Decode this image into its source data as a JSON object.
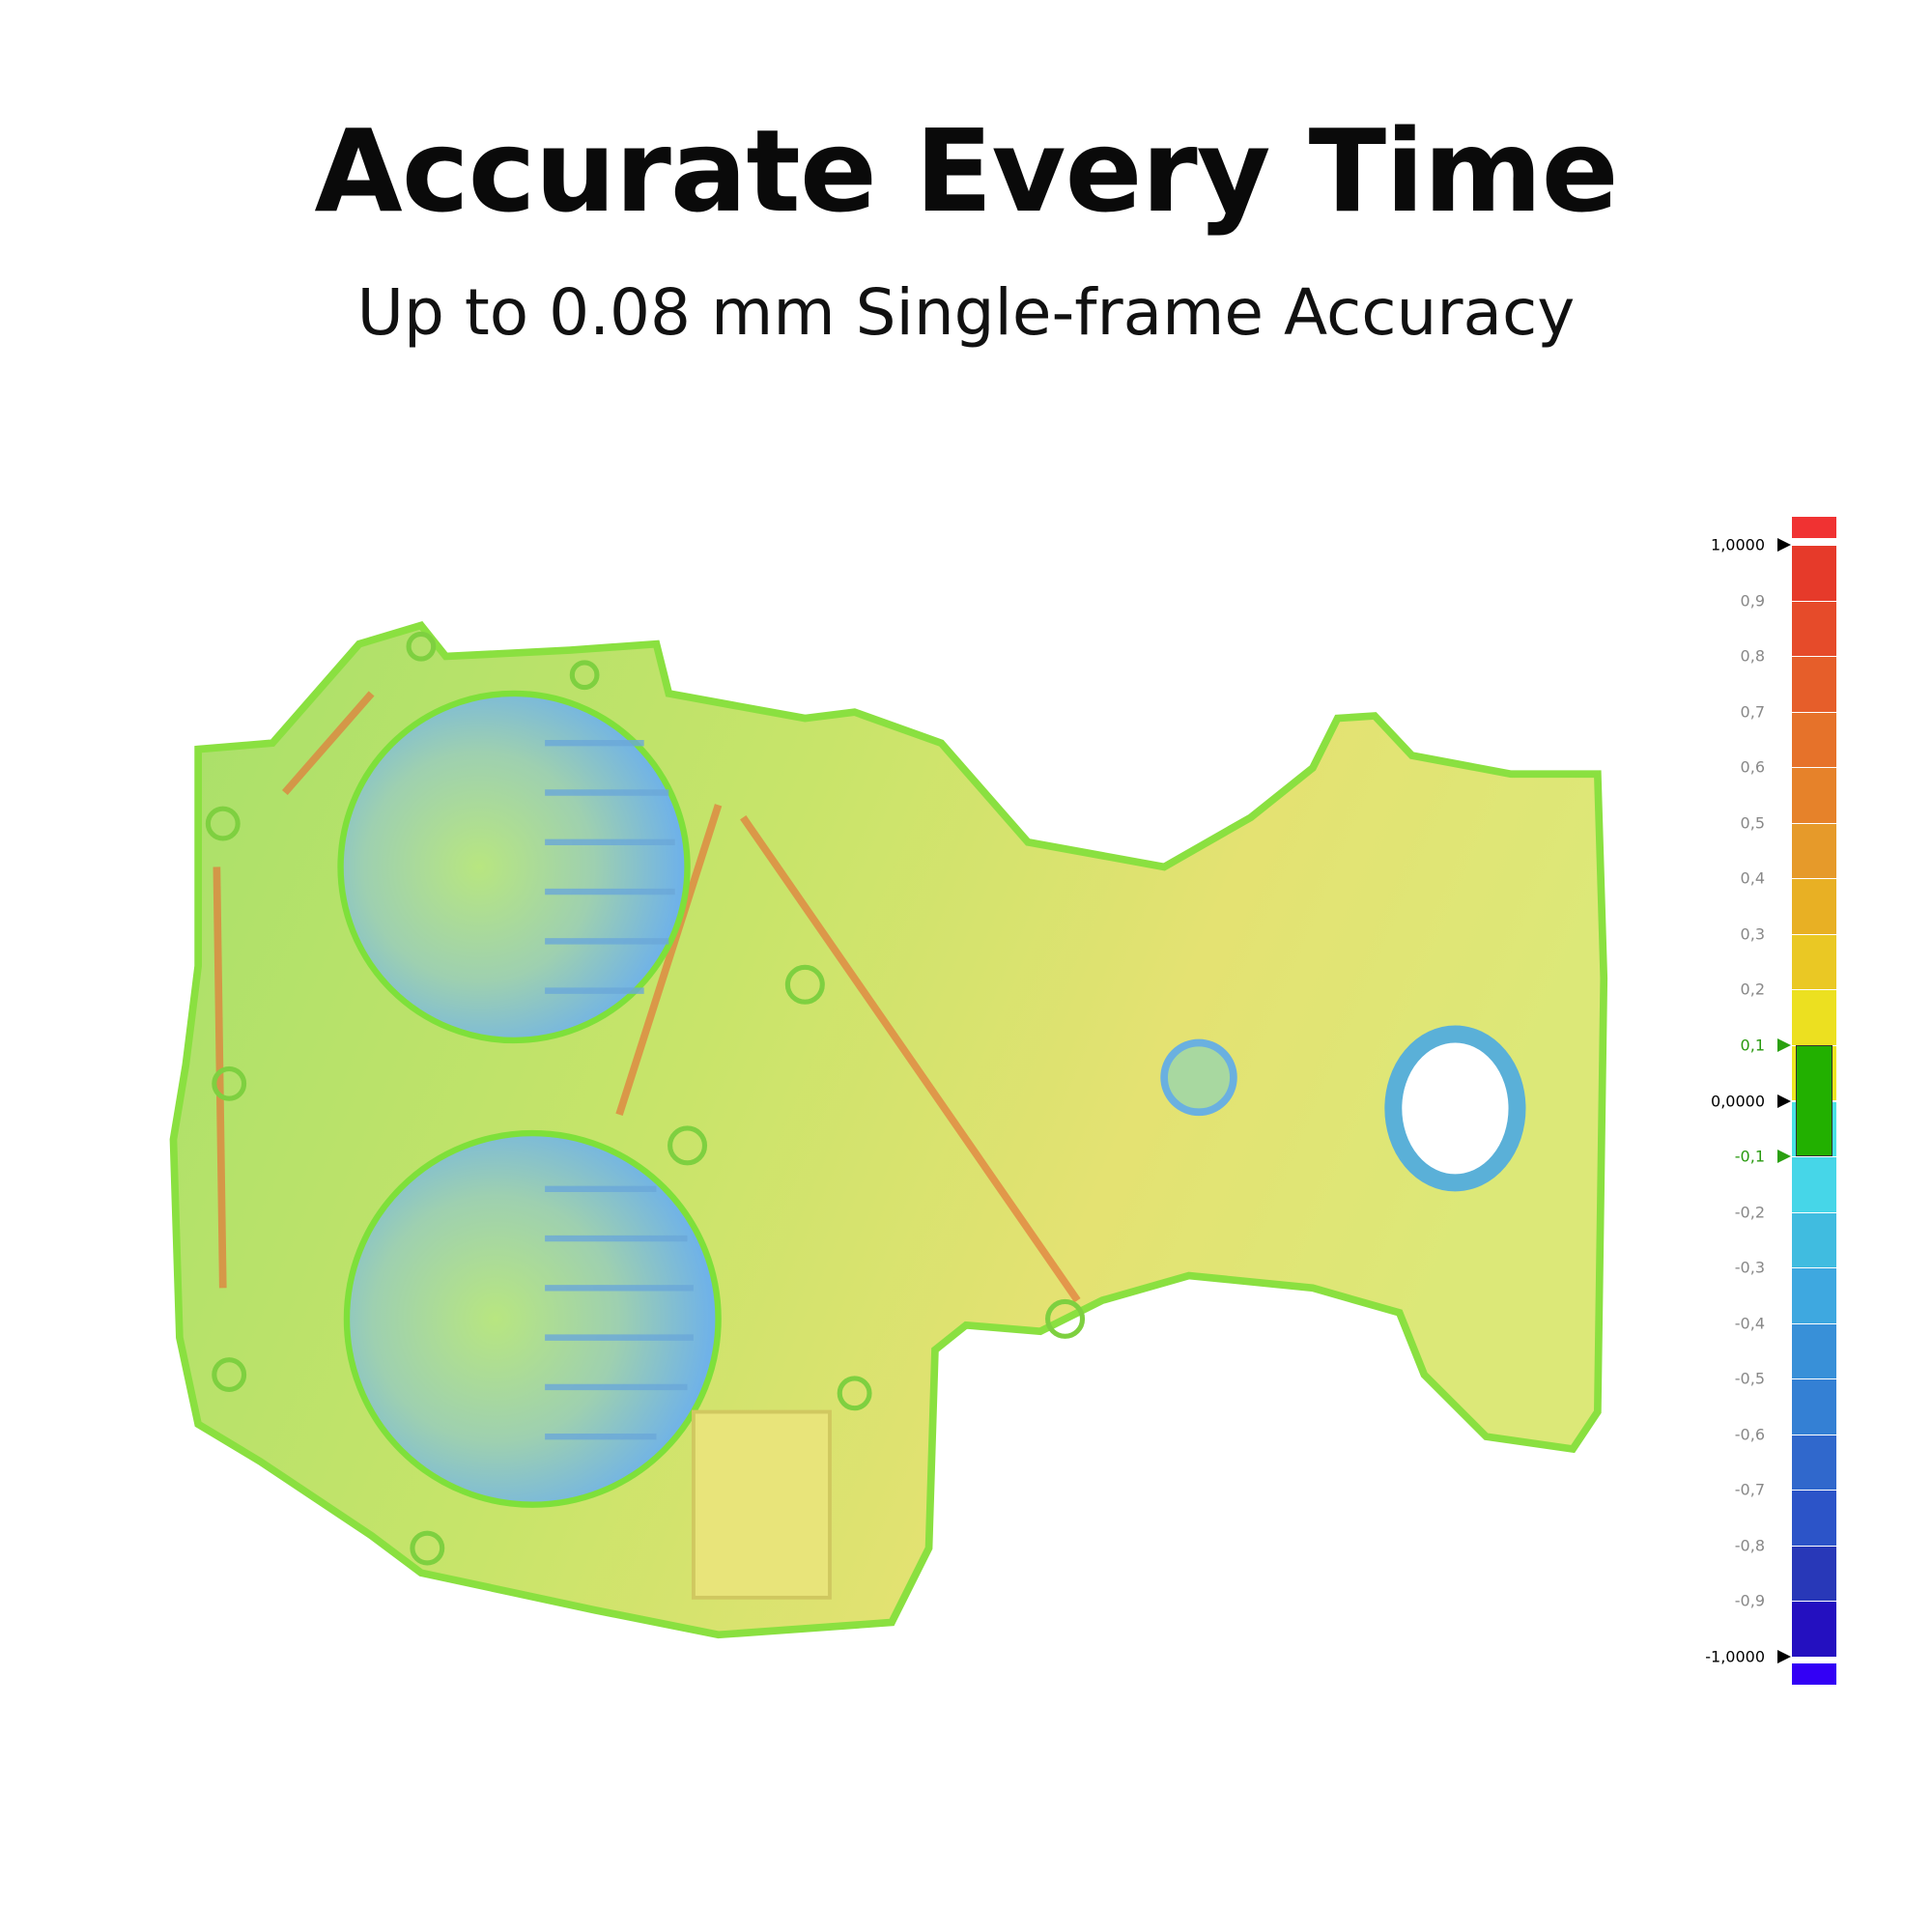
{
  "header": {
    "title": "Accurate Every Time",
    "subtitle": "Up to 0.08 mm Single-frame Accuracy"
  },
  "color_scale": {
    "max_label": "1,0000",
    "zero_label": "0,0000",
    "min_label": "-1,0000",
    "tolerance_upper_label": "0,1",
    "tolerance_lower_label": "-0,1",
    "tolerance_color": "#22b000",
    "over_color": "#f03232",
    "under_color": "#3300f5",
    "ticks": [
      "1,0000",
      "0,9",
      "0,8",
      "0,7",
      "0,6",
      "0,5",
      "0,4",
      "0,3",
      "0,2",
      "0,1",
      "0,0000",
      "-0,1",
      "-0,2",
      "-0,3",
      "-0,4",
      "-0,5",
      "-0,6",
      "-0,7",
      "-0,8",
      "-0,9",
      "-1,0000"
    ],
    "segment_colors": [
      "#e63a2a",
      "#e64b2a",
      "#e65e2a",
      "#e6722a",
      "#e6822a",
      "#e69a2a",
      "#e8b024",
      "#eac824",
      "#ece020",
      "#ece620",
      "#48e2e4",
      "#46d6e8",
      "#40bce0",
      "#3ea8e0",
      "#3890d8",
      "#3480d4",
      "#3068cc",
      "#2c54c8",
      "#2838b8",
      "#2410c0"
    ]
  },
  "part": {
    "colors": {
      "base": "#b4e36a",
      "yellow": "#e6e070",
      "green": "#7ee03a",
      "blue": "#7ab8e8",
      "edge": "#e2783a"
    }
  }
}
